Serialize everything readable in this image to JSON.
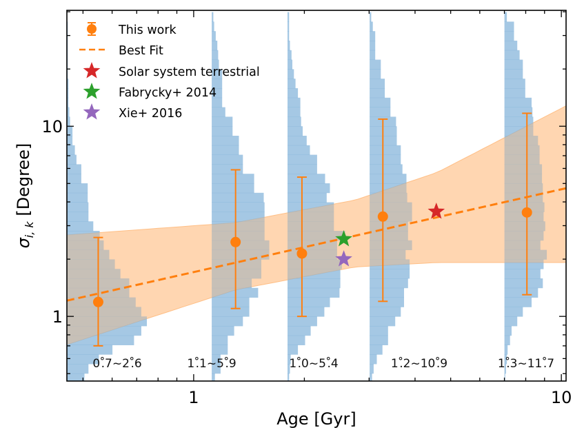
{
  "chart_data": {
    "type": "scatter",
    "title": "",
    "xlabel": "Age [Gyr]",
    "ylabel_main": "σ",
    "ylabel_sub": "i, k",
    "ylabel_rest": " [Degree]",
    "xscale": "log",
    "yscale": "log",
    "xlim": [
      0.452,
      10.3
    ],
    "ylim": [
      0.457,
      40.7
    ],
    "x_major_ticks": [
      1,
      10
    ],
    "x_tick_labels": [
      "1",
      "10"
    ],
    "y_major_ticks": [
      1,
      10
    ],
    "y_tick_labels": [
      "1",
      "10"
    ],
    "grid": false,
    "legend_position": "top-left",
    "legend": [
      {
        "label": "This work",
        "marker": "errorbar-circle",
        "color": "#ff7f0e"
      },
      {
        "label": "Best Fit",
        "marker": "dashed-line",
        "color": "#ff7f0e"
      },
      {
        "label": "Solar system terrestrial",
        "marker": "star",
        "color": "#d62728"
      },
      {
        "label": "Fabrycky+ 2014",
        "marker": "star",
        "color": "#2ca02c"
      },
      {
        "label": "Xie+ 2016",
        "marker": "star",
        "color": "#9467bd"
      }
    ],
    "series": [
      {
        "name": "This work",
        "color": "#ff7f0e",
        "points": [
          {
            "age": 0.55,
            "sigma": 1.19,
            "sigma_low": 0.7,
            "sigma_high": 2.6,
            "interval_label": "0°.7~2°.6"
          },
          {
            "age": 1.3,
            "sigma": 2.46,
            "sigma_low": 1.1,
            "sigma_high": 5.9,
            "interval_label": "1°.1~5°.9"
          },
          {
            "age": 1.97,
            "sigma": 2.14,
            "sigma_low": 1.0,
            "sigma_high": 5.4,
            "interval_label": "1°.0~5°.4"
          },
          {
            "age": 3.27,
            "sigma": 3.35,
            "sigma_low": 1.2,
            "sigma_high": 10.9,
            "interval_label": "1°.2~10°.9"
          },
          {
            "age": 8.06,
            "sigma": 3.52,
            "sigma_low": 1.3,
            "sigma_high": 11.7,
            "interval_label": "1°.3~11°.7"
          }
        ]
      },
      {
        "name": "Solar system terrestrial",
        "color": "#d62728",
        "points": [
          {
            "age": 4.57,
            "sigma": 3.56
          }
        ]
      },
      {
        "name": "Fabrycky+ 2014",
        "color": "#2ca02c",
        "points": [
          {
            "age": 2.56,
            "sigma": 2.55
          }
        ]
      },
      {
        "name": "Xie+ 2016",
        "color": "#9467bd",
        "points": [
          {
            "age": 2.56,
            "sigma": 2.0
          }
        ]
      }
    ],
    "best_fit": {
      "name": "Best Fit",
      "color": "#ff7f0e",
      "style": "dashed",
      "x": [
        0.452,
        10.3
      ],
      "y": [
        1.21,
        4.72
      ]
    },
    "confidence_band": {
      "color": "#ffbf86",
      "age": [
        0.452,
        1.3,
        2.75,
        4.6,
        10.3
      ],
      "upper": [
        2.68,
        3.11,
        4.09,
        5.72,
        12.8
      ],
      "lower": [
        0.71,
        1.38,
        1.82,
        1.92,
        1.92
      ]
    },
    "histograms": {
      "color": "#7fb1d8",
      "orientation": "horizontal",
      "log10_sigma_bin_start": -0.35,
      "log10_sigma_bin_width": 0.05,
      "bins_order": "bottom-to-top",
      "items": [
        {
          "base_age": 0.452,
          "density": [
            0.22,
            0.27,
            0.4,
            0.57,
            0.84,
            0.93,
            1.0,
            0.93,
            0.86,
            0.78,
            0.78,
            0.67,
            0.6,
            0.53,
            0.46,
            0.41,
            0.33,
            0.27,
            0.27,
            0.26,
            0.26,
            0.18,
            0.18,
            0.12,
            0.1,
            0.07,
            0.07,
            0.04,
            0.03,
            0.02,
            0.02,
            0.02,
            0.01,
            0.01,
            0.01,
            0.01,
            0.01,
            0.01,
            0.0
          ]
        },
        {
          "base_age": 1.12,
          "density": [
            0.04,
            0.11,
            0.11,
            0.2,
            0.2,
            0.28,
            0.39,
            0.47,
            0.47,
            0.58,
            0.5,
            0.62,
            0.62,
            0.72,
            0.72,
            0.66,
            0.66,
            0.66,
            0.66,
            0.65,
            0.53,
            0.53,
            0.39,
            0.39,
            0.34,
            0.34,
            0.26,
            0.26,
            0.17,
            0.13,
            0.13,
            0.13,
            0.13,
            0.09,
            0.08,
            0.07,
            0.05,
            0.03,
            0.02
          ]
        },
        {
          "base_age": 1.8,
          "density": [
            0.02,
            0.03,
            0.04,
            0.13,
            0.22,
            0.29,
            0.37,
            0.46,
            0.53,
            0.65,
            0.66,
            0.66,
            0.68,
            0.62,
            0.62,
            0.72,
            0.58,
            0.58,
            0.58,
            0.49,
            0.53,
            0.47,
            0.37,
            0.37,
            0.28,
            0.24,
            0.19,
            0.17,
            0.16,
            0.16,
            0.13,
            0.1,
            0.08,
            0.06,
            0.05,
            0.03,
            0.02,
            0.02,
            0.02
          ]
        },
        {
          "base_age": 3.01,
          "density": [
            0.03,
            0.05,
            0.09,
            0.16,
            0.23,
            0.23,
            0.32,
            0.39,
            0.43,
            0.43,
            0.48,
            0.5,
            0.5,
            0.45,
            0.53,
            0.48,
            0.48,
            0.53,
            0.53,
            0.47,
            0.46,
            0.46,
            0.41,
            0.39,
            0.39,
            0.34,
            0.34,
            0.33,
            0.26,
            0.26,
            0.19,
            0.19,
            0.14,
            0.14,
            0.07,
            0.07,
            0.07,
            0.04,
            0.02
          ]
        },
        {
          "base_age": 7.0,
          "density": [
            0.01,
            0.02,
            0.03,
            0.04,
            0.07,
            0.09,
            0.16,
            0.23,
            0.34,
            0.42,
            0.48,
            0.45,
            0.49,
            0.53,
            0.45,
            0.49,
            0.51,
            0.49,
            0.5,
            0.48,
            0.48,
            0.47,
            0.47,
            0.44,
            0.44,
            0.42,
            0.36,
            0.36,
            0.35,
            0.34,
            0.26,
            0.26,
            0.23,
            0.23,
            0.19,
            0.16,
            0.12,
            0.12,
            0.03
          ]
        }
      ]
    }
  }
}
